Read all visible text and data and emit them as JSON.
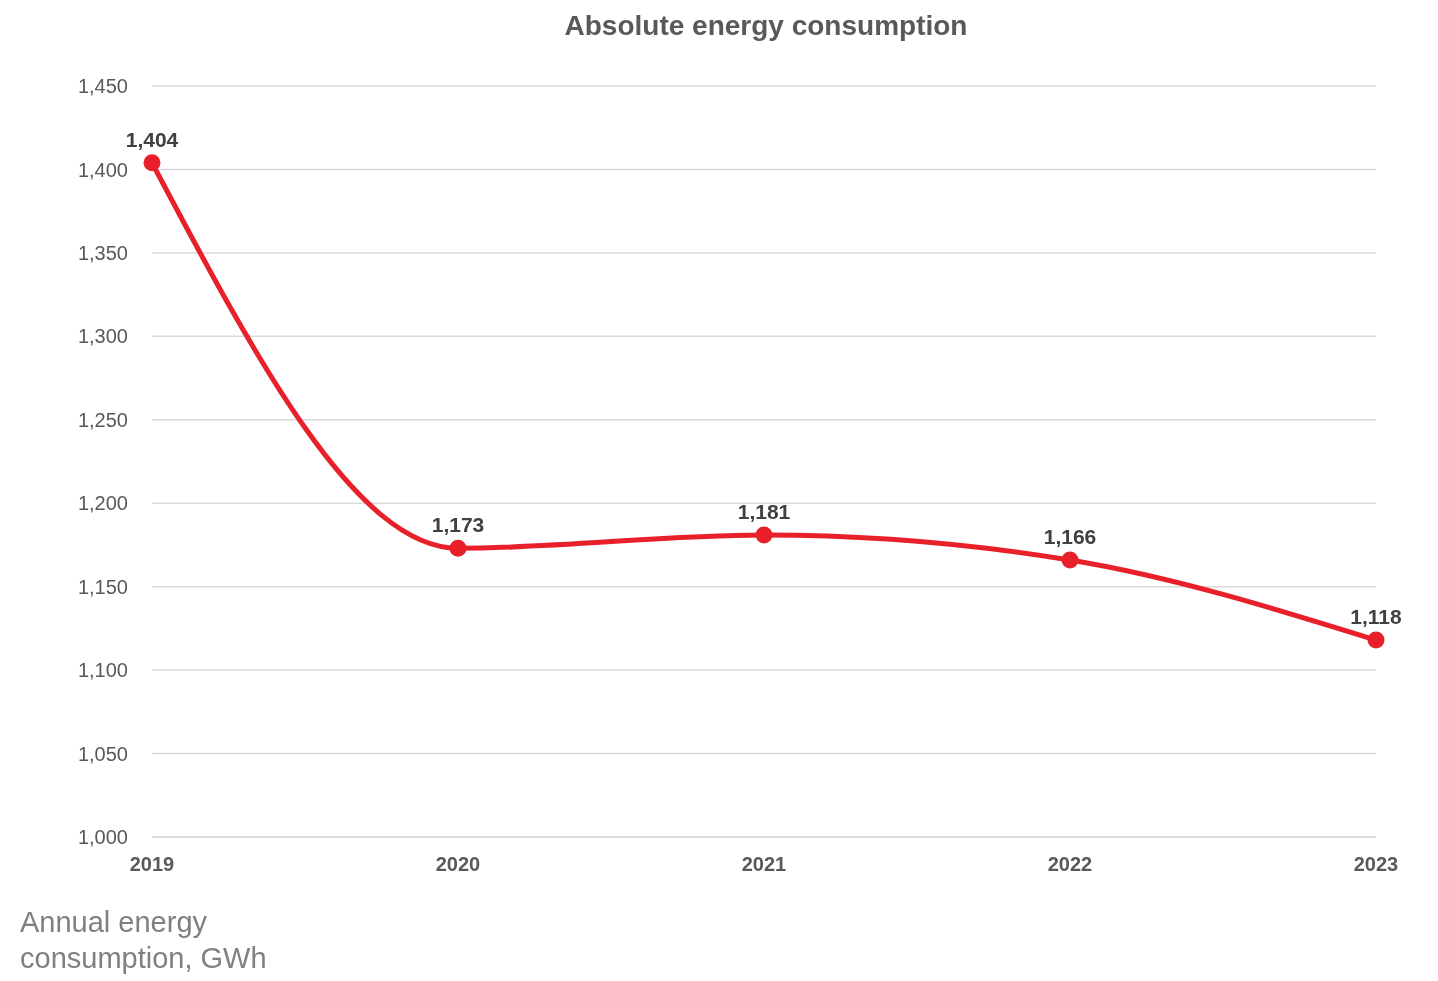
{
  "chart_data": {
    "type": "line",
    "title": "Absolute energy consumption",
    "ylabel": "Annual energy consumption, GWh",
    "categories": [
      "2019",
      "2020",
      "2021",
      "2022",
      "2023"
    ],
    "series": [
      {
        "color": "#e8202a",
        "values": [
          1404,
          1173,
          1181,
          1166,
          1118
        ],
        "value_labels": [
          "1,404",
          "1,173",
          "1,181",
          "1,166",
          "1,118"
        ]
      }
    ],
    "ylim": [
      1000,
      1450
    ],
    "yticks": [
      {
        "value": 1000,
        "label": "1,000"
      },
      {
        "value": 1050,
        "label": "1,050"
      },
      {
        "value": 1100,
        "label": "1,100"
      },
      {
        "value": 1150,
        "label": "1,150"
      },
      {
        "value": 1200,
        "label": "1,200"
      },
      {
        "value": 1250,
        "label": "1,250"
      },
      {
        "value": 1300,
        "label": "1,300"
      },
      {
        "value": 1350,
        "label": "1,350"
      },
      {
        "value": 1400,
        "label": "1,400"
      },
      {
        "value": 1450,
        "label": "1,450"
      }
    ],
    "grid": "y",
    "marker": "circle"
  }
}
